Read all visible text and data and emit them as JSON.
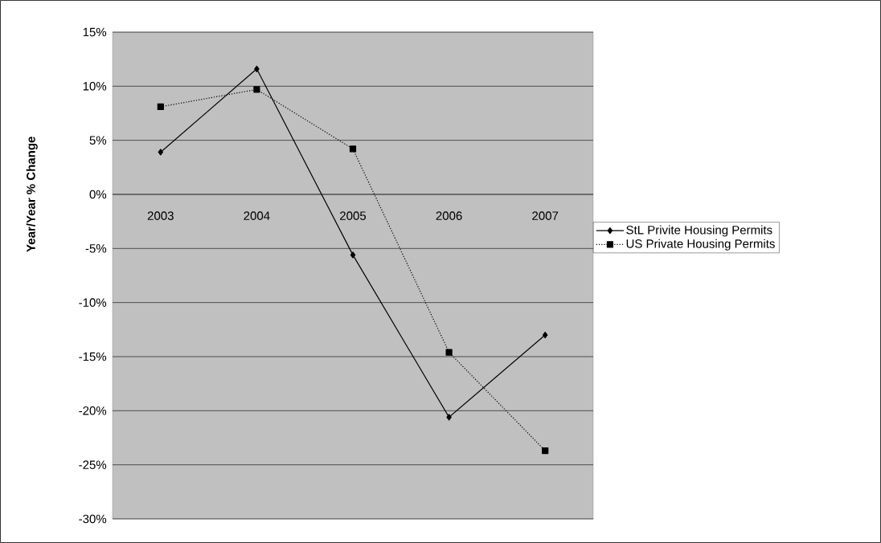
{
  "chart_data": {
    "type": "line",
    "ylabel": "Year/Year % Change",
    "categories": [
      "2003",
      "2004",
      "2005",
      "2006",
      "2007"
    ],
    "series": [
      {
        "name": "StL Privite Housing Permits",
        "color": "#000000",
        "marker": "diamond",
        "line_style": "solid",
        "values": [
          3.9,
          11.6,
          -5.6,
          -20.6,
          -13.0
        ]
      },
      {
        "name": "US Private Housing Permits",
        "color": "#000000",
        "marker": "square",
        "line_style": "dotted",
        "values": [
          8.1,
          9.7,
          4.2,
          -14.6,
          -23.7
        ]
      }
    ],
    "ylim": [
      -30,
      15
    ],
    "yticks": [
      {
        "value": -30,
        "label": "-30%"
      },
      {
        "value": -25,
        "label": "-25%"
      },
      {
        "value": -20,
        "label": "-20%"
      },
      {
        "value": -15,
        "label": "-15%"
      },
      {
        "value": -10,
        "label": "-10%"
      },
      {
        "value": -5,
        "label": "-5%"
      },
      {
        "value": 0,
        "label": "0%"
      },
      {
        "value": 5,
        "label": "5%"
      },
      {
        "value": 10,
        "label": "10%"
      },
      {
        "value": 15,
        "label": "15%"
      }
    ],
    "grid": "y",
    "legend": "right"
  }
}
